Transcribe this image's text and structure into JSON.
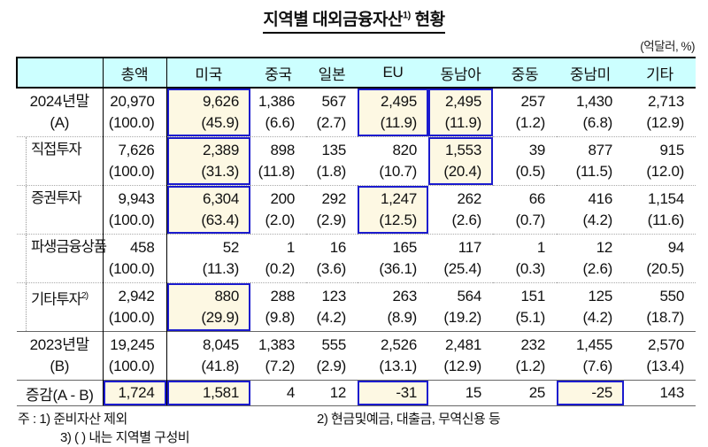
{
  "title": {
    "main": "지역별 대외금융자산",
    "sup": "1)",
    "tail": " 현황"
  },
  "unit_label": "(억달러, %)",
  "table": {
    "column_headers": [
      "총액",
      "미국",
      "중국",
      "일본",
      "EU",
      "동남아",
      "중동",
      "중남미",
      "기타"
    ],
    "rows": [
      {
        "label": [
          "2024년말",
          "(A)"
        ],
        "style": "first",
        "indent": false,
        "values": [
          "20,970",
          "9,626",
          "1,386",
          "567",
          "2,495",
          "2,495",
          "257",
          "1,430",
          "2,713"
        ],
        "percents": [
          "(100.0)",
          "(45.9)",
          "(6.6)",
          "(2.7)",
          "(11.9)",
          "(11.9)",
          "(1.2)",
          "(6.8)",
          "(12.9)"
        ],
        "highlights": [
          1,
          4,
          5
        ]
      },
      {
        "label": [
          "직접투자"
        ],
        "style": "dotted",
        "indent": true,
        "values": [
          "7,626",
          "2,389",
          "898",
          "135",
          "820",
          "1,553",
          "39",
          "877",
          "915"
        ],
        "percents": [
          "(100.0)",
          "(31.3)",
          "(11.8)",
          "(1.8)",
          "(10.7)",
          "(20.4)",
          "(0.5)",
          "(11.5)",
          "(12.0)"
        ],
        "highlights": [
          1,
          5
        ]
      },
      {
        "label": [
          "증권투자"
        ],
        "style": "dotted",
        "indent": true,
        "values": [
          "9,943",
          "6,304",
          "200",
          "292",
          "1,247",
          "262",
          "66",
          "416",
          "1,154"
        ],
        "percents": [
          "(100.0)",
          "(63.4)",
          "(2.0)",
          "(2.9)",
          "(12.5)",
          "(2.6)",
          "(0.7)",
          "(4.2)",
          "(11.6)"
        ],
        "highlights": [
          1,
          4
        ]
      },
      {
        "label": [
          "파생금융상품"
        ],
        "style": "dotted",
        "indent": true,
        "values": [
          "458",
          "52",
          "1",
          "16",
          "165",
          "117",
          "1",
          "12",
          "94"
        ],
        "percents": [
          "(100.0)",
          "(11.3)",
          "(0.2)",
          "(3.6)",
          "(36.1)",
          "(25.4)",
          "(0.3)",
          "(2.6)",
          "(20.5)"
        ],
        "highlights": []
      },
      {
        "label": [
          "기타투자"
        ],
        "label_sup": "2)",
        "style": "dotted",
        "indent": true,
        "values": [
          "2,942",
          "880",
          "288",
          "123",
          "263",
          "564",
          "151",
          "125",
          "550"
        ],
        "percents": [
          "(100.0)",
          "(29.9)",
          "(9.8)",
          "(4.2)",
          "(8.9)",
          "(19.2)",
          "(5.1)",
          "(4.2)",
          "(18.7)"
        ],
        "highlights": [
          1
        ]
      },
      {
        "label": [
          "2023년말",
          "(B)"
        ],
        "style": "solid",
        "indent": false,
        "values": [
          "19,245",
          "8,045",
          "1,383",
          "555",
          "2,526",
          "2,481",
          "232",
          "1,455",
          "2,570"
        ],
        "percents": [
          "(100.0)",
          "(41.8)",
          "(7.2)",
          "(2.9)",
          "(13.1)",
          "(12.9)",
          "(1.2)",
          "(7.6)",
          "(13.4)"
        ],
        "highlights": []
      },
      {
        "label": [
          "증감(A - B)"
        ],
        "style": "solid single",
        "indent": false,
        "values": [
          "1,724",
          "1,581",
          "4",
          "12",
          "-31",
          "15",
          "25",
          "-25",
          "143"
        ],
        "highlights": [
          0,
          1,
          4,
          7
        ]
      }
    ]
  },
  "notes": {
    "prefix": "주 : ",
    "note1": "1) 준비자산 제외",
    "note2": "2) 현금및예금, 대출금, 무역신용 등",
    "note3": "3) (  ) 내는 지역별 구성비"
  },
  "colors": {
    "header_bg": "#CCFFFF",
    "highlight_bg": "#FDF8E3",
    "highlight_border": "#1B1BCE"
  }
}
